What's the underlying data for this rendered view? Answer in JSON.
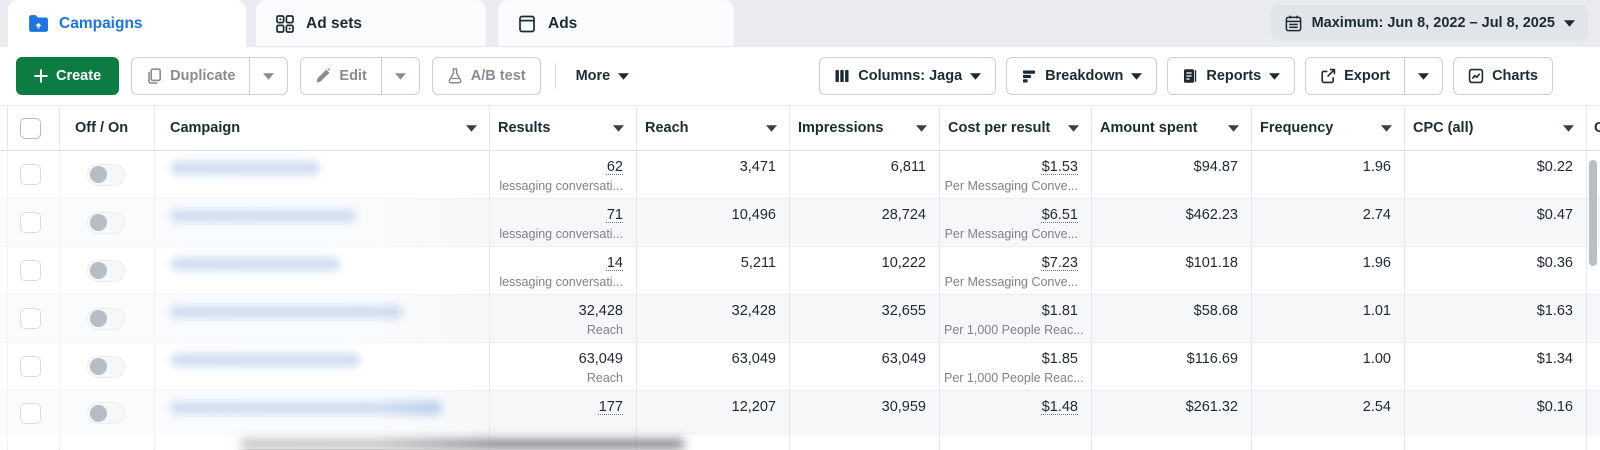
{
  "colors": {
    "accent_green": "#0d7c42",
    "brand_blue": "#1b74e4"
  },
  "tabs": [
    {
      "label": "Campaigns",
      "active": true
    },
    {
      "label": "Ad sets",
      "active": false
    },
    {
      "label": "Ads",
      "active": false
    }
  ],
  "date_range": {
    "label": "Maximum: Jun 8, 2022 – Jul 8, 2025"
  },
  "toolbar": {
    "create_label": "Create",
    "duplicate_label": "Duplicate",
    "edit_label": "Edit",
    "ab_test_label": "A/B test",
    "more_label": "More",
    "columns_label": "Columns: Jaga",
    "breakdown_label": "Breakdown",
    "reports_label": "Reports",
    "export_label": "Export",
    "charts_label": "Charts"
  },
  "table": {
    "headers": {
      "off_on": "Off / On",
      "campaign": "Campaign",
      "results": "Results",
      "reach": "Reach",
      "impressions": "Impressions",
      "cost_per_result": "Cost per result",
      "amount_spent": "Amount spent",
      "frequency": "Frequency",
      "cpc": "CPC (all)",
      "next_partial": "C"
    },
    "rows": [
      {
        "results": "62",
        "results_sub": "lessaging conversati...",
        "results_est": true,
        "reach": "3,471",
        "impressions": "6,811",
        "cost": "$1.53",
        "cost_sub": "Per Messaging Conve...",
        "cost_est": true,
        "spent": "$94.87",
        "frequency": "1.96",
        "cpc": "$0.22"
      },
      {
        "results": "71",
        "results_sub": "lessaging conversati...",
        "results_est": true,
        "reach": "10,496",
        "impressions": "28,724",
        "cost": "$6.51",
        "cost_sub": "Per Messaging Conve...",
        "cost_est": true,
        "spent": "$462.23",
        "frequency": "2.74",
        "cpc": "$0.47"
      },
      {
        "results": "14",
        "results_sub": "lessaging conversati...",
        "results_est": true,
        "reach": "5,211",
        "impressions": "10,222",
        "cost": "$7.23",
        "cost_sub": "Per Messaging Conve...",
        "cost_est": true,
        "spent": "$101.18",
        "frequency": "1.96",
        "cpc": "$0.36"
      },
      {
        "results": "32,428",
        "results_sub": "Reach",
        "results_est": false,
        "reach": "32,428",
        "impressions": "32,655",
        "cost": "$1.81",
        "cost_sub": "Per 1,000 People Reac...",
        "cost_est": false,
        "spent": "$58.68",
        "frequency": "1.01",
        "cpc": "$1.63"
      },
      {
        "results": "63,049",
        "results_sub": "Reach",
        "results_est": false,
        "reach": "63,049",
        "impressions": "63,049",
        "cost": "$1.85",
        "cost_sub": "Per 1,000 People Reac...",
        "cost_est": false,
        "spent": "$116.69",
        "frequency": "1.00",
        "cpc": "$1.34"
      },
      {
        "results": "177",
        "results_sub": "",
        "results_est": true,
        "reach": "12,207",
        "impressions": "30,959",
        "cost": "$1.48",
        "cost_sub": "",
        "cost_est": true,
        "spent": "$261.32",
        "frequency": "2.54",
        "cpc": "$0.16"
      }
    ]
  }
}
